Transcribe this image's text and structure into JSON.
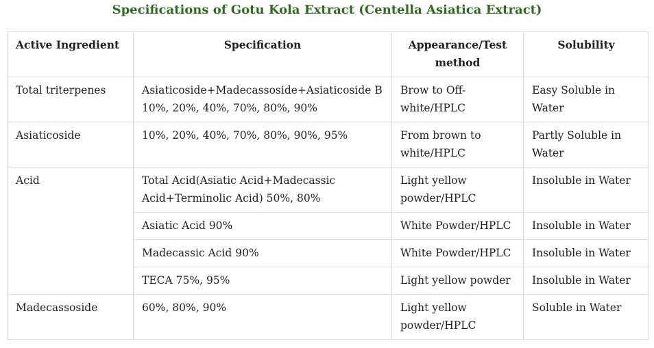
{
  "title": "Specifications of Gotu Kola Extract (Centella Asiatica Extract)",
  "headers": {
    "ingredient": "Active Ingredient",
    "specification": "Specification",
    "appearance": "Appearance/Test method",
    "solubility": "Solubility"
  },
  "rows": [
    {
      "ingredient": "Total triterpenes",
      "specification": "Asiaticoside+Madecassoside+Asiaticoside B 10%, 20%, 40%, 70%, 80%, 90%",
      "appearance": "Brow to Off-white/HPLC",
      "solubility": "Easy Soluble in Water"
    },
    {
      "ingredient": "Asiaticoside",
      "specification": "10%, 20%, 40%, 70%, 80%, 90%, 95%",
      "appearance": "From brown to white/HPLC",
      "solubility": "Partly Soluble in Water"
    },
    {
      "ingredient": "Acid",
      "specification": "Total Acid(Asiatic Acid+Madecassic Acid+Terminolic Acid) 50%, 80%",
      "appearance": "Light yellow powder/HPLC",
      "solubility": "Insoluble in Water"
    },
    {
      "specification": "Asiatic Acid 90%",
      "appearance": "White Powder/HPLC",
      "solubility": "Insoluble in Water"
    },
    {
      "specification": "Madecassic Acid 90%",
      "appearance": "White Powder/HPLC",
      "solubility": "Insoluble in Water"
    },
    {
      "specification": "TECA 75%, 95%",
      "appearance": "Light yellow powder",
      "solubility": "Insoluble in Water"
    },
    {
      "ingredient": "Madecassoside",
      "specification": "60%, 80%, 90%",
      "appearance": "Light yellow powder/HPLC",
      "solubility": "Soluble in Water"
    }
  ]
}
